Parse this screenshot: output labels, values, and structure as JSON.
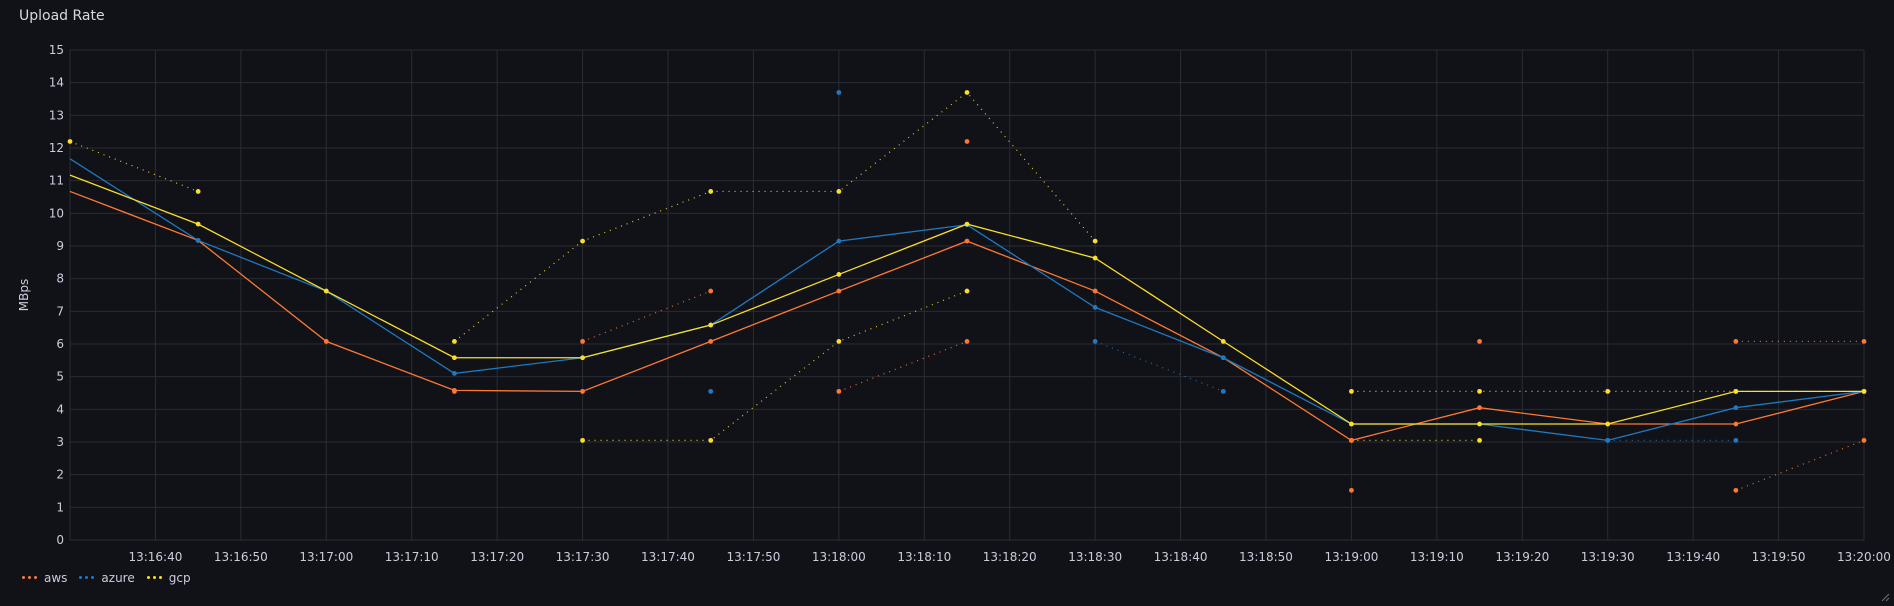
{
  "panel": {
    "title": "Upload Rate"
  },
  "chart_data": {
    "type": "line",
    "ylabel": "MBps",
    "xlabel": "",
    "ylim": [
      0,
      15
    ],
    "yticks": [
      0,
      1,
      2,
      3,
      4,
      5,
      6,
      7,
      8,
      9,
      10,
      11,
      12,
      13,
      14,
      15
    ],
    "x_range": [
      "13:16:30",
      "13:20:00"
    ],
    "xticks": [
      "13:16:40",
      "13:16:50",
      "13:17:00",
      "13:17:10",
      "13:17:20",
      "13:17:30",
      "13:17:40",
      "13:17:50",
      "13:18:00",
      "13:18:10",
      "13:18:20",
      "13:18:30",
      "13:18:40",
      "13:18:50",
      "13:19:00",
      "13:19:10",
      "13:19:20",
      "13:19:30",
      "13:19:40",
      "13:19:50",
      "13:20:00"
    ],
    "grid": true,
    "legend_position": "bottom-left",
    "times": [
      "13:16:30",
      "13:16:45",
      "13:17:00",
      "13:17:15",
      "13:17:30",
      "13:17:45",
      "13:18:00",
      "13:18:15",
      "13:18:30",
      "13:18:45",
      "13:19:00",
      "13:19:15",
      "13:19:30",
      "13:19:45",
      "13:20:00"
    ],
    "series": [
      {
        "name": "aws",
        "color": "#ff7833",
        "values": [
          10.67,
          9.17,
          6.08,
          4.58,
          4.55,
          6.08,
          7.62,
          9.15,
          7.62,
          5.58,
          3.05,
          4.05,
          3.55,
          3.55,
          4.55
        ],
        "min": [
          null,
          null,
          null,
          4.55,
          null,
          null,
          4.55,
          6.08,
          null,
          null,
          1.52,
          null,
          null,
          1.52,
          3.05
        ],
        "max": [
          null,
          null,
          null,
          null,
          6.08,
          7.62,
          null,
          12.2,
          null,
          null,
          null,
          6.08,
          null,
          6.08,
          6.08
        ]
      },
      {
        "name": "azure",
        "color": "#1f78c1",
        "values": [
          11.67,
          9.17,
          7.62,
          5.1,
          5.58,
          6.58,
          9.15,
          9.65,
          7.12,
          5.58,
          3.55,
          3.55,
          3.05,
          4.05,
          4.55
        ],
        "min": [
          null,
          null,
          null,
          null,
          null,
          4.55,
          null,
          null,
          6.08,
          4.55,
          null,
          null,
          3.05,
          3.05,
          null
        ],
        "max": [
          null,
          null,
          null,
          null,
          null,
          null,
          13.7,
          null,
          7.62,
          null,
          null,
          null,
          null,
          null,
          null
        ]
      },
      {
        "name": "gcp",
        "color": "#fade2a",
        "values": [
          11.17,
          9.67,
          7.62,
          5.58,
          5.58,
          6.58,
          8.13,
          9.67,
          8.63,
          6.08,
          3.55,
          3.55,
          3.55,
          4.55,
          4.55
        ],
        "min": [
          null,
          null,
          null,
          null,
          3.05,
          3.05,
          6.08,
          7.62,
          null,
          null,
          3.05,
          3.05,
          null,
          null,
          null
        ],
        "max": [
          12.2,
          10.67,
          null,
          6.08,
          9.15,
          10.67,
          10.67,
          13.7,
          9.15,
          null,
          4.55,
          4.55,
          4.55,
          4.55,
          4.55
        ]
      }
    ]
  }
}
